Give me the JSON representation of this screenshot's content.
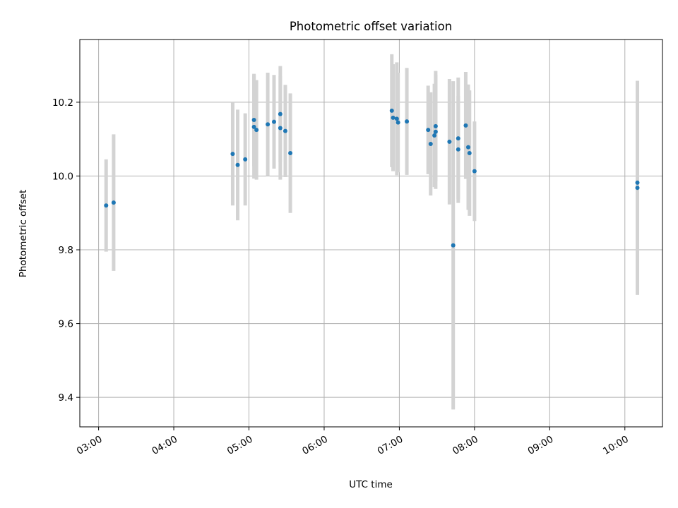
{
  "chart_data": {
    "type": "scatter",
    "title": "Photometric offset variation",
    "xlabel": "UTC time",
    "ylabel": "Photometric offset",
    "x_ticks": [
      "03:00",
      "04:00",
      "05:00",
      "06:00",
      "07:00",
      "08:00",
      "09:00",
      "10:00"
    ],
    "y_ticks": [
      "9.4",
      "9.6",
      "9.8",
      "10.0",
      "10.2"
    ],
    "xlim": [
      "02:45",
      "10:30"
    ],
    "ylim": [
      9.32,
      10.37
    ],
    "grid": true,
    "colors": {
      "point": "#1f77b4",
      "errorbar": "#d3d3d3",
      "grid": "#b0b0b0"
    },
    "points": [
      {
        "x": "03:06",
        "y": 9.92,
        "err": 0.125
      },
      {
        "x": "03:12",
        "y": 9.928,
        "err": 0.185
      },
      {
        "x": "04:47",
        "y": 10.06,
        "err": 0.14
      },
      {
        "x": "04:51",
        "y": 10.03,
        "err": 0.15
      },
      {
        "x": "04:57",
        "y": 10.045,
        "err": 0.125
      },
      {
        "x": "05:04",
        "y": 10.152,
        "err": 0.125
      },
      {
        "x": "05:04",
        "y": 10.133,
        "err": 0.14
      },
      {
        "x": "05:06",
        "y": 10.125,
        "err": 0.135
      },
      {
        "x": "05:15",
        "y": 10.14,
        "err": 0.14
      },
      {
        "x": "05:20",
        "y": 10.147,
        "err": 0.127
      },
      {
        "x": "05:25",
        "y": 10.168,
        "err": 0.13
      },
      {
        "x": "05:25",
        "y": 10.13,
        "err": 0.14
      },
      {
        "x": "05:29",
        "y": 10.122,
        "err": 0.125
      },
      {
        "x": "05:33",
        "y": 10.062,
        "err": 0.162
      },
      {
        "x": "06:54",
        "y": 10.177,
        "err": 0.153
      },
      {
        "x": "06:55",
        "y": 10.158,
        "err": 0.145
      },
      {
        "x": "06:58",
        "y": 10.155,
        "err": 0.153
      },
      {
        "x": "06:59",
        "y": 10.145,
        "err": 0.135
      },
      {
        "x": "07:06",
        "y": 10.148,
        "err": 0.145
      },
      {
        "x": "07:23",
        "y": 10.125,
        "err": 0.12
      },
      {
        "x": "07:25",
        "y": 10.087,
        "err": 0.14
      },
      {
        "x": "07:28",
        "y": 10.11,
        "err": 0.14
      },
      {
        "x": "07:29",
        "y": 10.135,
        "err": 0.15
      },
      {
        "x": "07:29",
        "y": 10.12,
        "err": 0.155
      },
      {
        "x": "07:40",
        "y": 10.093,
        "err": 0.17
      },
      {
        "x": "07:43",
        "y": 9.812,
        "err": 0.445
      },
      {
        "x": "07:47",
        "y": 10.072,
        "err": 0.145
      },
      {
        "x": "07:47",
        "y": 10.102,
        "err": 0.165
      },
      {
        "x": "07:53",
        "y": 10.137,
        "err": 0.145
      },
      {
        "x": "07:55",
        "y": 10.078,
        "err": 0.17
      },
      {
        "x": "07:56",
        "y": 10.062,
        "err": 0.17
      },
      {
        "x": "08:00",
        "y": 10.013,
        "err": 0.135
      },
      {
        "x": "10:10",
        "y": 9.982,
        "err": 0.275
      },
      {
        "x": "10:10",
        "y": 9.968,
        "err": 0.29
      }
    ]
  }
}
